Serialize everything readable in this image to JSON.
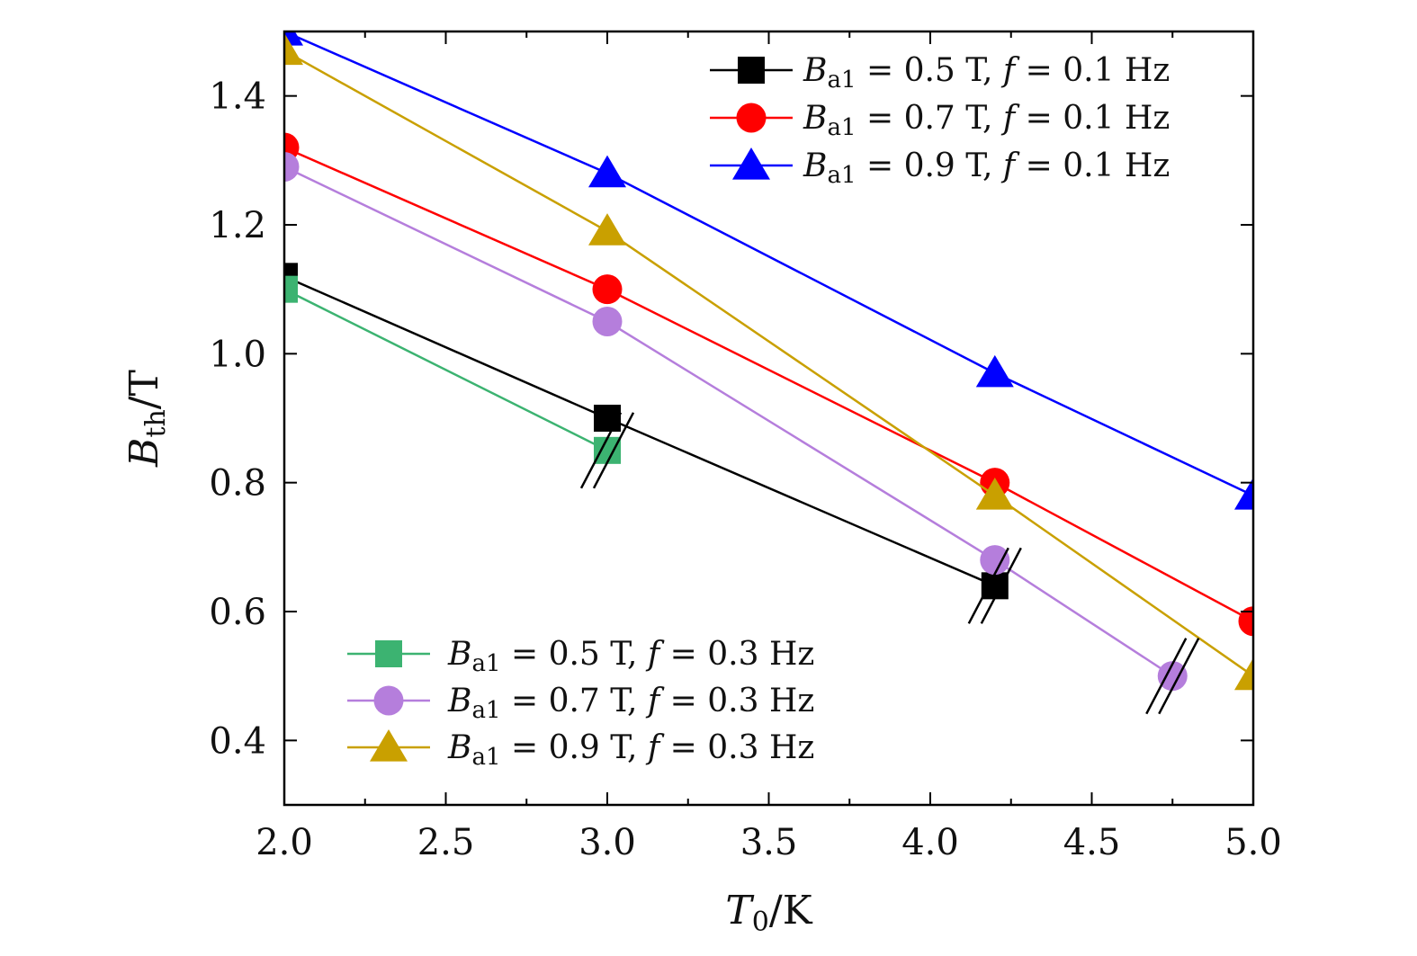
{
  "chart_data": {
    "type": "line",
    "title": "",
    "xlabel": {
      "main": "T",
      "sub": "0",
      "unit": "/K"
    },
    "ylabel": {
      "main": "B",
      "sub": "th",
      "unit": "/T"
    },
    "xlim": [
      2.0,
      5.0
    ],
    "ylim": [
      0.3,
      1.5
    ],
    "xticks": [
      2.0,
      2.5,
      3.0,
      3.5,
      4.0,
      4.5,
      5.0
    ],
    "xtick_labels": [
      "2.0",
      "2.5",
      "3.0",
      "3.5",
      "4.0",
      "4.5",
      "5.0"
    ],
    "yticks": [
      0.4,
      0.6,
      0.8,
      1.0,
      1.2,
      1.4
    ],
    "ytick_labels": [
      "0.4",
      "0.6",
      "0.8",
      "1.0",
      "1.2",
      "1.4"
    ],
    "grid": false,
    "series": [
      {
        "id": "s1",
        "name": "B_a1 = 0.5 T, f = 0.1 Hz",
        "label_var": "B",
        "label_sub": "a1",
        "label_rest": " = 0.5 T,  f = 0.1 Hz",
        "color": "#000000",
        "marker": "square",
        "legend_group": "top-right",
        "x": [
          2.0,
          3.0,
          4.2
        ],
        "y": [
          1.12,
          0.9,
          0.64
        ]
      },
      {
        "id": "s2",
        "name": "B_a1 = 0.7 T, f = 0.1 Hz",
        "label_var": "B",
        "label_sub": "a1",
        "label_rest": " = 0.7 T,  f = 0.1 Hz",
        "color": "#ff0000",
        "marker": "circle",
        "legend_group": "top-right",
        "x": [
          2.0,
          3.0,
          4.2,
          5.0
        ],
        "y": [
          1.32,
          1.1,
          0.8,
          0.585
        ]
      },
      {
        "id": "s3",
        "name": "B_a1 = 0.9 T, f = 0.1 Hz",
        "label_var": "B",
        "label_sub": "a1",
        "label_rest": " = 0.9 T,  f = 0.1 Hz",
        "color": "#0000ff",
        "marker": "triangle",
        "legend_group": "top-right",
        "x": [
          2.0,
          3.0,
          4.2,
          5.0
        ],
        "y": [
          1.5,
          1.28,
          0.97,
          0.78
        ]
      },
      {
        "id": "s4",
        "name": "B_a1 = 0.5 T, f = 0.3 Hz",
        "label_var": "B",
        "label_sub": "a1",
        "label_rest": " = 0.5 T,  f = 0.3 Hz",
        "color": "#3cb371",
        "marker": "square",
        "legend_group": "bottom-left",
        "x": [
          2.0,
          3.0
        ],
        "y": [
          1.1,
          0.85
        ]
      },
      {
        "id": "s5",
        "name": "B_a1 = 0.7 T, f = 0.3 Hz",
        "label_var": "B",
        "label_sub": "a1",
        "label_rest": " = 0.7 T,  f = 0.3 Hz",
        "color": "#b57edc",
        "marker": "circle",
        "legend_group": "bottom-left",
        "x": [
          2.0,
          3.0,
          4.2,
          4.75
        ],
        "y": [
          1.29,
          1.05,
          0.68,
          0.5
        ]
      },
      {
        "id": "s6",
        "name": "B_a1 = 0.9 T, f = 0.3 Hz",
        "label_var": "B",
        "label_sub": "a1",
        "label_rest": " = 0.9 T,  f = 0.3 Hz",
        "color": "#c9a000",
        "marker": "triangle",
        "legend_group": "bottom-left",
        "x": [
          2.0,
          3.0,
          4.2,
          5.0
        ],
        "y": [
          1.47,
          1.19,
          0.78,
          0.5
        ]
      }
    ],
    "annotations": [
      {
        "type": "break-mark",
        "x": 3.0,
        "y": 0.85
      },
      {
        "type": "break-mark",
        "x": 4.2,
        "y": 0.64
      },
      {
        "type": "break-mark",
        "x": 4.75,
        "y": 0.5
      }
    ],
    "legends": [
      {
        "placement": "top-right",
        "series": [
          "s1",
          "s2",
          "s3"
        ]
      },
      {
        "placement": "bottom-left",
        "series": [
          "s4",
          "s5",
          "s6"
        ]
      }
    ]
  }
}
